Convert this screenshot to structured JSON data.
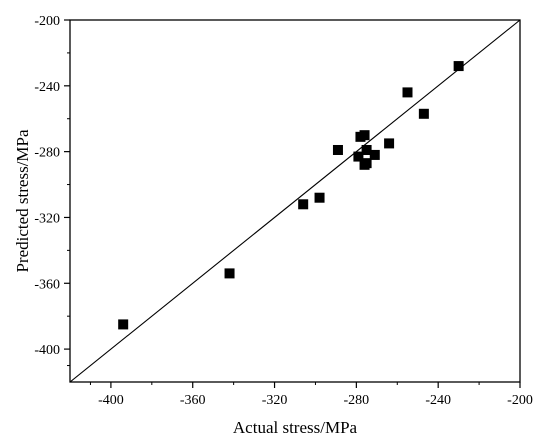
{
  "chart_data": {
    "type": "scatter",
    "xlabel": "Actual stress/MPa",
    "ylabel": "Predicted stress/MPa",
    "xlim": [
      -420,
      -200
    ],
    "ylim": [
      -420,
      -200
    ],
    "xticks": [
      -400,
      -360,
      -320,
      -280,
      -240,
      -200
    ],
    "yticks": [
      -400,
      -360,
      -320,
      -280,
      -240,
      -200
    ],
    "grid": false,
    "reference_line": {
      "from": [
        -420,
        -420
      ],
      "to": [
        -200,
        -200
      ]
    },
    "marker": "square",
    "marker_color": "#000000",
    "points": [
      {
        "x": -394,
        "y": -385
      },
      {
        "x": -342,
        "y": -354
      },
      {
        "x": -306,
        "y": -312
      },
      {
        "x": -298,
        "y": -308
      },
      {
        "x": -289,
        "y": -279
      },
      {
        "x": -279,
        "y": -283
      },
      {
        "x": -278,
        "y": -271
      },
      {
        "x": -276,
        "y": -270
      },
      {
        "x": -275,
        "y": -287
      },
      {
        "x": -276,
        "y": -288
      },
      {
        "x": -275,
        "y": -279
      },
      {
        "x": -271,
        "y": -282
      },
      {
        "x": -264,
        "y": -275
      },
      {
        "x": -255,
        "y": -244
      },
      {
        "x": -247,
        "y": -257
      },
      {
        "x": -230,
        "y": -228
      }
    ]
  }
}
